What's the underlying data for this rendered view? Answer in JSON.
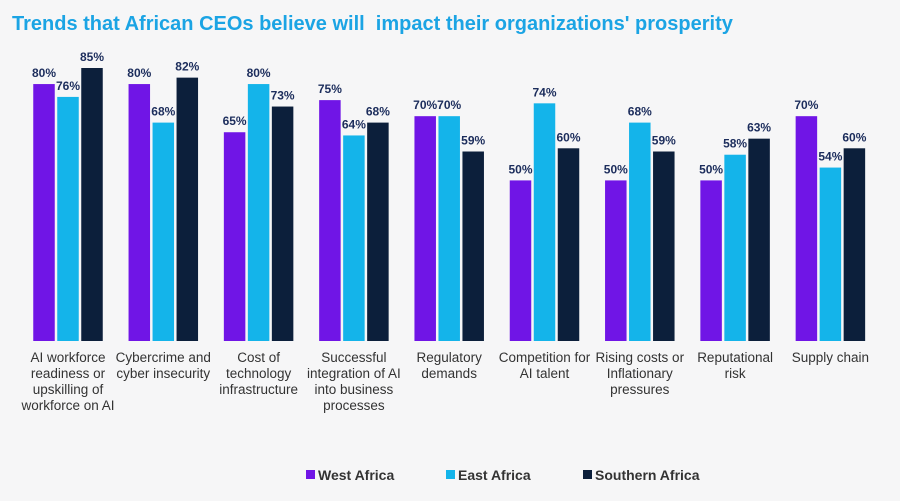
{
  "chart_data": {
    "type": "bar",
    "title": "Trends that African CEOs believe will  impact their organizations' prosperity",
    "categories": [
      "AI workforce readiness or upskilling of workforce on AI",
      "Cybercrime and cyber insecurity",
      "Cost of technology infrastructure",
      "Successful integration of AI into business processes",
      "Regulatory demands",
      "Competition for AI talent",
      "Rising costs or Inflationary pressures",
      "Reputational risk",
      "Supply chain"
    ],
    "series": [
      {
        "name": "West Africa",
        "color": "#7015e6",
        "values": [
          80,
          80,
          65,
          75,
          70,
          50,
          50,
          50,
          70
        ],
        "value_labels": [
          "80%",
          "80%",
          "65%",
          "75%",
          "70%",
          "50%",
          "50%",
          "50%",
          "70%"
        ]
      },
      {
        "name": "East Africa",
        "color": "#14b4ea",
        "values": [
          76,
          68,
          80,
          64,
          70,
          74,
          68,
          58,
          54
        ],
        "value_labels": [
          "76%",
          "68%",
          "80%",
          "64%",
          "70%",
          "74%",
          "68%",
          "58%",
          "54%"
        ]
      },
      {
        "name": "Southern Africa",
        "color": "#0c1f3b",
        "values": [
          85,
          82,
          73,
          68,
          59,
          60,
          59,
          63,
          60
        ],
        "value_labels": [
          "85%",
          "82%",
          "73%",
          "68%",
          "59%",
          "60%",
          "59%",
          "63%",
          "60%"
        ]
      }
    ],
    "legend": "bottom"
  }
}
